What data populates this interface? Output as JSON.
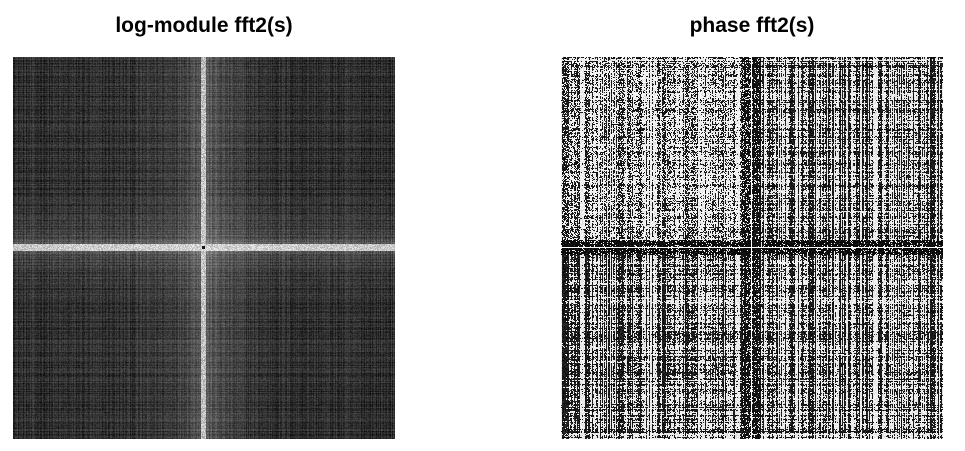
{
  "figure": {
    "panels": [
      {
        "title": "log-module fft2(s)",
        "kind": "log-magnitude-spectrum",
        "colormap": "gray",
        "background_level": "dark",
        "center_feature": "bright horizontal and vertical cross"
      },
      {
        "title": "phase fft2(s)",
        "kind": "phase-spectrum",
        "colormap": "gray",
        "background_level": "mixed high-contrast",
        "center_feature": "dark cross with thin bright lines"
      }
    ]
  }
}
